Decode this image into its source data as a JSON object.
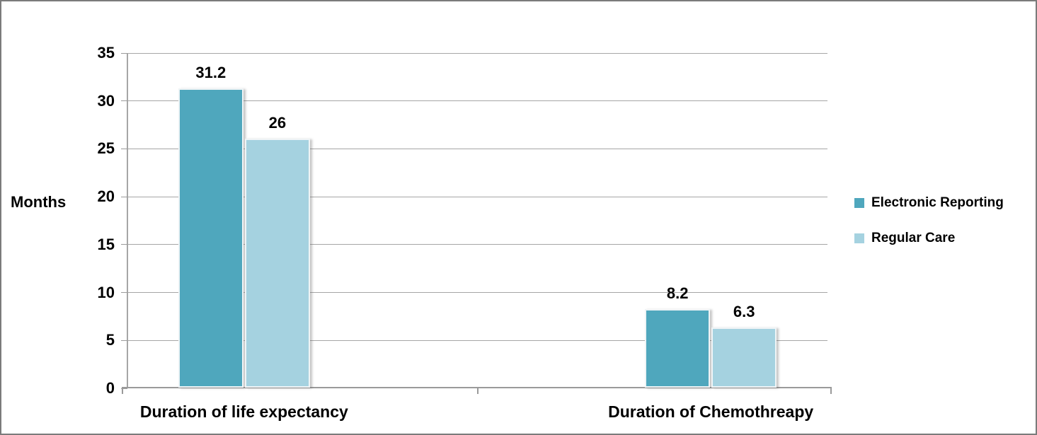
{
  "chart_data": {
    "type": "bar",
    "title": "",
    "categories": [
      "Duration of life expectancy",
      "Duration of Chemothreapy"
    ],
    "series": [
      {
        "name": "Electronic Reporting",
        "color": "#4FA7BD",
        "values": [
          31.2,
          8.2
        ],
        "labels": [
          "31.2",
          "8.2"
        ]
      },
      {
        "name": "Regular Care",
        "color": "#A5D2E0",
        "values": [
          26,
          6.3
        ],
        "labels": [
          "26",
          "6.3"
        ]
      }
    ],
    "xlabel": "",
    "ylabel": "Months",
    "ylim": [
      0,
      35
    ],
    "yticks": [
      0,
      5,
      10,
      15,
      20,
      25,
      30,
      35
    ],
    "grid": true,
    "legend_position": "right"
  },
  "colors": {
    "background": "#FFFFFF",
    "gridline": "#A6A6A6",
    "axis": "#9A9A9A",
    "frame_border": "#7B7B7B",
    "text": "#000000"
  }
}
